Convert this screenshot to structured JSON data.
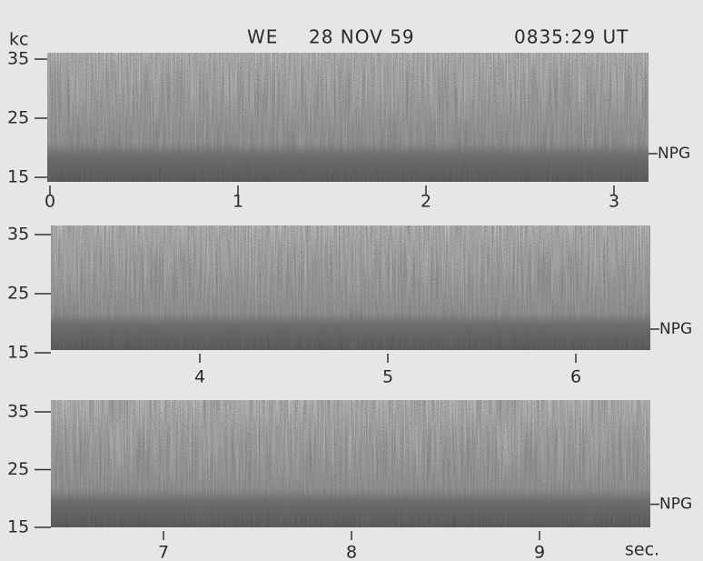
{
  "header": {
    "day": "WE",
    "date": "28 NOV 59",
    "time": "0835:29 UT"
  },
  "y_unit": "kc",
  "x_unit": "sec.",
  "panels": [
    {
      "yticks": [
        35,
        25,
        15
      ],
      "xticks": [
        0,
        1,
        2,
        3
      ],
      "marker": "NPG"
    },
    {
      "yticks": [
        35,
        25,
        15
      ],
      "xticks": [
        4,
        5,
        6
      ],
      "marker": "NPG"
    },
    {
      "yticks": [
        35,
        25,
        15
      ],
      "xticks": [
        7,
        8,
        9
      ],
      "marker": "NPG"
    }
  ]
}
